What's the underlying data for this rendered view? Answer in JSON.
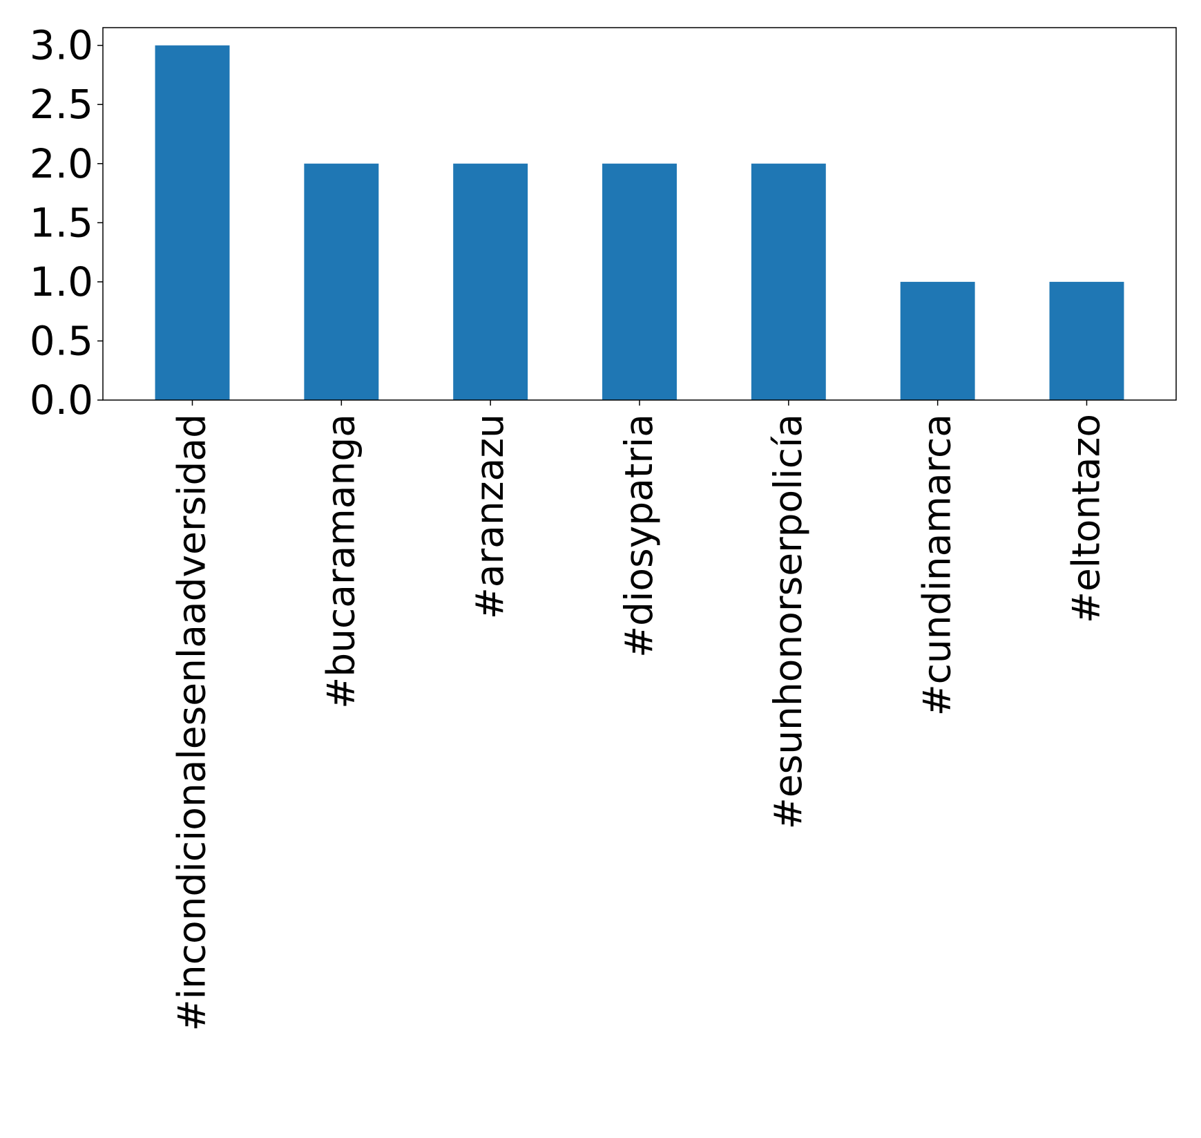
{
  "chart_data": {
    "type": "bar",
    "title": "",
    "xlabel": "",
    "ylabel": "",
    "categories": [
      "#incondicionalesenlaadversidad",
      "#bucaramanga",
      "#aranzazu",
      "#diosypatria",
      "#esunhonorserpolicía",
      "#cundinamarca",
      "#eltontazo"
    ],
    "values": [
      3,
      2,
      2,
      2,
      2,
      1,
      1
    ],
    "ylim": [
      0,
      3.15
    ],
    "yticks": [
      "0.0",
      "0.5",
      "1.0",
      "1.5",
      "2.0",
      "2.5",
      "3.0"
    ],
    "bar_color": "#1f77b4",
    "grid": false,
    "legend": "none"
  }
}
